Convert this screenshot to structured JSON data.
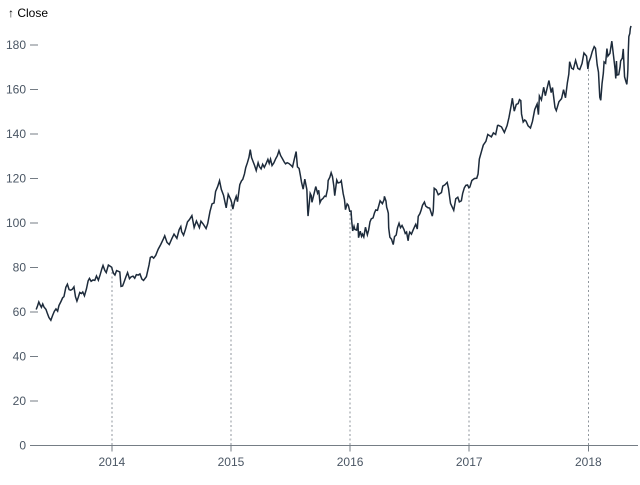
{
  "page": {
    "background": "#ffffff"
  },
  "chart_data": {
    "type": "line",
    "title": "",
    "ylabel": "↑ Close",
    "series_name": "Close",
    "legend": false,
    "grid": "dotted-vertical-rules-at-year-ticks",
    "x_ticks": [
      2014,
      2015,
      2016,
      2017,
      2018
    ],
    "x_tick_labels": [
      "2014",
      "2015",
      "2016",
      "2017",
      "2018"
    ],
    "y_ticks": [
      0,
      20,
      40,
      60,
      80,
      100,
      120,
      140,
      160,
      180
    ],
    "y_tick_labels": [
      "0",
      "20",
      "40",
      "60",
      "80",
      "100",
      "120",
      "140",
      "160",
      "180"
    ],
    "xlim": [
      2013.355,
      2018.4
    ],
    "ylim": [
      0,
      190
    ],
    "colors": {
      "line": "#1d2b3b",
      "tick_text": "#4a5664",
      "axis": "#757d85",
      "rule_dotted": "#8f969c",
      "background": "#ffffff"
    },
    "points": [
      [
        2013.365,
        61.1
      ],
      [
        2013.376,
        62.7
      ],
      [
        2013.387,
        64.5
      ],
      [
        2013.398,
        63.2
      ],
      [
        2013.409,
        62.1
      ],
      [
        2013.42,
        63.6
      ],
      [
        2013.431,
        62.2
      ],
      [
        2013.447,
        61.2
      ],
      [
        2013.458,
        59.5
      ],
      [
        2013.472,
        57.5
      ],
      [
        2013.488,
        56.3
      ],
      [
        2013.503,
        58.5
      ],
      [
        2013.517,
        60.3
      ],
      [
        2013.531,
        61.4
      ],
      [
        2013.545,
        60.4
      ],
      [
        2013.556,
        62.9
      ],
      [
        2013.572,
        64.6
      ],
      [
        2013.587,
        66.4
      ],
      [
        2013.598,
        66.9
      ],
      [
        2013.614,
        71.1
      ],
      [
        2013.627,
        72.5
      ],
      [
        2013.641,
        70.1
      ],
      [
        2013.654,
        69.8
      ],
      [
        2013.668,
        70.2
      ],
      [
        2013.682,
        71.3
      ],
      [
        2013.695,
        66.8
      ],
      [
        2013.707,
        64.9
      ],
      [
        2013.717,
        66.4
      ],
      [
        2013.731,
        68.8
      ],
      [
        2013.745,
        68.3
      ],
      [
        2013.756,
        69.0
      ],
      [
        2013.77,
        67.3
      ],
      [
        2013.787,
        70.4
      ],
      [
        2013.801,
        74.0
      ],
      [
        2013.812,
        75.1
      ],
      [
        2013.826,
        73.8
      ],
      [
        2013.842,
        74.4
      ],
      [
        2013.857,
        74.2
      ],
      [
        2013.871,
        76.2
      ],
      [
        2013.887,
        74.3
      ],
      [
        2013.901,
        76.6
      ],
      [
        2013.916,
        79.4
      ],
      [
        2013.926,
        80.9
      ],
      [
        2013.941,
        78.7
      ],
      [
        2013.953,
        77.7
      ],
      [
        2013.971,
        81.1
      ],
      [
        2013.985,
        80.6
      ],
      [
        2013.999,
        80.1
      ],
      [
        2014.004,
        79.0
      ],
      [
        2014.015,
        77.3
      ],
      [
        2014.026,
        76.6
      ],
      [
        2014.04,
        78.6
      ],
      [
        2014.055,
        78.3
      ],
      [
        2014.067,
        78.0
      ],
      [
        2014.077,
        71.5
      ],
      [
        2014.09,
        71.7
      ],
      [
        2014.101,
        73.2
      ],
      [
        2014.118,
        75.8
      ],
      [
        2014.132,
        77.7
      ],
      [
        2014.148,
        75.0
      ],
      [
        2014.162,
        75.8
      ],
      [
        2014.178,
        76.1
      ],
      [
        2014.192,
        75.2
      ],
      [
        2014.206,
        76.8
      ],
      [
        2014.222,
        76.6
      ],
      [
        2014.236,
        77.1
      ],
      [
        2014.252,
        74.8
      ],
      [
        2014.266,
        74.2
      ],
      [
        2014.29,
        75.9
      ],
      [
        2014.312,
        81.1
      ],
      [
        2014.323,
        84.5
      ],
      [
        2014.337,
        84.9
      ],
      [
        2014.351,
        84.2
      ],
      [
        2014.368,
        85.4
      ],
      [
        2014.389,
        88.2
      ],
      [
        2014.411,
        90.4
      ],
      [
        2014.433,
        92.9
      ],
      [
        2014.444,
        94.25
      ],
      [
        2014.463,
        91.3
      ],
      [
        2014.482,
        90.3
      ],
      [
        2014.503,
        92.9
      ],
      [
        2014.522,
        95.0
      ],
      [
        2014.546,
        93.1
      ],
      [
        2014.565,
        97.0
      ],
      [
        2014.579,
        98.4
      ],
      [
        2014.586,
        96.1
      ],
      [
        2014.602,
        94.5
      ],
      [
        2014.618,
        97.2
      ],
      [
        2014.635,
        100.5
      ],
      [
        2014.651,
        101.5
      ],
      [
        2014.672,
        103.3
      ],
      [
        2014.691,
        98.0
      ],
      [
        2014.71,
        100.9
      ],
      [
        2014.735,
        97.9
      ],
      [
        2014.748,
        100.8
      ],
      [
        2014.766,
        99.6
      ],
      [
        2014.791,
        97.5
      ],
      [
        2014.805,
        99.8
      ],
      [
        2014.824,
        105.2
      ],
      [
        2014.841,
        108.6
      ],
      [
        2014.858,
        109.0
      ],
      [
        2014.871,
        114.2
      ],
      [
        2014.888,
        116.3
      ],
      [
        2014.904,
        119.0
      ],
      [
        2014.919,
        115.1
      ],
      [
        2014.938,
        112.4
      ],
      [
        2014.96,
        106.8
      ],
      [
        2014.977,
        112.9
      ],
      [
        2014.999,
        110.4
      ],
      [
        2015.005,
        109.3
      ],
      [
        2015.016,
        106.25
      ],
      [
        2015.03,
        109.8
      ],
      [
        2015.044,
        112.0
      ],
      [
        2015.055,
        109.6
      ],
      [
        2015.074,
        117.2
      ],
      [
        2015.088,
        118.9
      ],
      [
        2015.099,
        119.6
      ],
      [
        2015.113,
        122.0
      ],
      [
        2015.124,
        124.9
      ],
      [
        2015.138,
        127.1
      ],
      [
        2015.151,
        129.5
      ],
      [
        2015.162,
        133.0
      ],
      [
        2015.173,
        129.4
      ],
      [
        2015.187,
        127.4
      ],
      [
        2015.198,
        125.9
      ],
      [
        2015.212,
        123.6
      ],
      [
        2015.228,
        127.1
      ],
      [
        2015.239,
        125.3
      ],
      [
        2015.253,
        124.3
      ],
      [
        2015.266,
        126.4
      ],
      [
        2015.28,
        125.0
      ],
      [
        2015.294,
        126.6
      ],
      [
        2015.31,
        128.6
      ],
      [
        2015.321,
        126.8
      ],
      [
        2015.332,
        128.7
      ],
      [
        2015.345,
        125.8
      ],
      [
        2015.36,
        127.0
      ],
      [
        2015.376,
        128.95
      ],
      [
        2015.389,
        130.2
      ],
      [
        2015.403,
        132.5
      ],
      [
        2015.417,
        130.3
      ],
      [
        2015.431,
        129.0
      ],
      [
        2015.447,
        127.4
      ],
      [
        2015.458,
        126.6
      ],
      [
        2015.472,
        127.1
      ],
      [
        2015.486,
        126.75
      ],
      [
        2015.503,
        126.0
      ],
      [
        2015.517,
        125.2
      ],
      [
        2015.531,
        128.5
      ],
      [
        2015.547,
        132.1
      ],
      [
        2015.558,
        125.2
      ],
      [
        2015.572,
        124.5
      ],
      [
        2015.583,
        121.3
      ],
      [
        2015.592,
        118.4
      ],
      [
        2015.606,
        115.2
      ],
      [
        2015.62,
        119.7
      ],
      [
        2015.637,
        115.0
      ],
      [
        2015.644,
        105.8
      ],
      [
        2015.647,
        103.1
      ],
      [
        2015.659,
        109.7
      ],
      [
        2015.665,
        113.3
      ],
      [
        2015.674,
        112.3
      ],
      [
        2015.68,
        109.3
      ],
      [
        2015.695,
        112.6
      ],
      [
        2015.712,
        116.4
      ],
      [
        2015.727,
        113.4
      ],
      [
        2015.737,
        114.7
      ],
      [
        2015.747,
        109.1
      ],
      [
        2015.758,
        110.4
      ],
      [
        2015.772,
        111.0
      ],
      [
        2015.786,
        112.1
      ],
      [
        2015.797,
        111.9
      ],
      [
        2015.811,
        115.3
      ],
      [
        2015.816,
        119.1
      ],
      [
        2015.83,
        120.6
      ],
      [
        2015.841,
        122.6
      ],
      [
        2015.852,
        120.9
      ],
      [
        2015.863,
        116.8
      ],
      [
        2015.871,
        112.3
      ],
      [
        2015.888,
        119.3
      ],
      [
        2015.899,
        118.0
      ],
      [
        2015.917,
        118.3
      ],
      [
        2015.926,
        119.0
      ],
      [
        2015.942,
        113.2
      ],
      [
        2015.953,
        110.5
      ],
      [
        2015.961,
        106.0
      ],
      [
        2015.975,
        108.6
      ],
      [
        2015.985,
        108.0
      ],
      [
        2015.997,
        105.3
      ],
      [
        2016.008,
        105.35
      ],
      [
        2016.014,
        100.7
      ],
      [
        2016.022,
        96.45
      ],
      [
        2016.033,
        98.5
      ],
      [
        2016.04,
        97.1
      ],
      [
        2016.055,
        96.8
      ],
      [
        2016.066,
        99.99
      ],
      [
        2016.071,
        93.4
      ],
      [
        2016.085,
        96.3
      ],
      [
        2016.096,
        94.0
      ],
      [
        2016.104,
        95.0
      ],
      [
        2016.115,
        93.7
      ],
      [
        2016.129,
        98.1
      ],
      [
        2016.145,
        94.7
      ],
      [
        2016.156,
        96.9
      ],
      [
        2016.167,
        100.5
      ],
      [
        2016.178,
        101.9
      ],
      [
        2016.193,
        102.3
      ],
      [
        2016.205,
        104.6
      ],
      [
        2016.216,
        105.9
      ],
      [
        2016.23,
        105.7
      ],
      [
        2016.247,
        108.99
      ],
      [
        2016.252,
        110.0
      ],
      [
        2016.271,
        108.7
      ],
      [
        2016.285,
        110.4
      ],
      [
        2016.288,
        112.0
      ],
      [
        2016.301,
        109.9
      ],
      [
        2016.307,
        107.1
      ],
      [
        2016.315,
        105.7
      ],
      [
        2016.321,
        104.35
      ],
      [
        2016.324,
        97.8
      ],
      [
        2016.334,
        93.6
      ],
      [
        2016.348,
        92.7
      ],
      [
        2016.362,
        90.3
      ],
      [
        2016.373,
        93.9
      ],
      [
        2016.387,
        94.6
      ],
      [
        2016.398,
        97.9
      ],
      [
        2016.411,
        99.9
      ],
      [
        2016.423,
        97.9
      ],
      [
        2016.436,
        98.9
      ],
      [
        2016.452,
        97.1
      ],
      [
        2016.463,
        95.3
      ],
      [
        2016.474,
        95.9
      ],
      [
        2016.487,
        92.0
      ],
      [
        2016.493,
        94.4
      ],
      [
        2016.501,
        95.9
      ],
      [
        2016.515,
        95.0
      ],
      [
        2016.528,
        96.7
      ],
      [
        2016.545,
        98.8
      ],
      [
        2016.551,
        99.4
      ],
      [
        2016.564,
        97.3
      ],
      [
        2016.572,
        103.0
      ],
      [
        2016.586,
        104.2
      ],
      [
        2016.597,
        105.9
      ],
      [
        2016.608,
        108.0
      ],
      [
        2016.624,
        109.4
      ],
      [
        2016.635,
        107.6
      ],
      [
        2016.652,
        106.9
      ],
      [
        2016.668,
        106.7
      ],
      [
        2016.69,
        103.1
      ],
      [
        2016.698,
        105.4
      ],
      [
        2016.703,
        111.8
      ],
      [
        2016.706,
        115.6
      ],
      [
        2016.723,
        114.9
      ],
      [
        2016.74,
        112.7
      ],
      [
        2016.767,
        113.7
      ],
      [
        2016.778,
        116.6
      ],
      [
        2016.795,
        117.1
      ],
      [
        2016.815,
        118.25
      ],
      [
        2016.826,
        115.6
      ],
      [
        2016.837,
        111.1
      ],
      [
        2016.843,
        108.8
      ],
      [
        2016.87,
        105.7
      ],
      [
        2016.887,
        110.9
      ],
      [
        2016.904,
        111.6
      ],
      [
        2016.917,
        109.5
      ],
      [
        2016.934,
        110.0
      ],
      [
        2016.945,
        113.3
      ],
      [
        2016.959,
        115.8
      ],
      [
        2016.972,
        116.95
      ],
      [
        2016.986,
        117.1
      ],
      [
        2016.997,
        115.8
      ],
      [
        2017.005,
        116.15
      ],
      [
        2017.022,
        119.1
      ],
      [
        2017.044,
        120.0
      ],
      [
        2017.063,
        120.1
      ],
      [
        2017.074,
        121.95
      ],
      [
        2017.085,
        128.75
      ],
      [
        2017.104,
        132.4
      ],
      [
        2017.118,
        135.0
      ],
      [
        2017.14,
        136.7
      ],
      [
        2017.156,
        139.8
      ],
      [
        2017.186,
        138.7
      ],
      [
        2017.203,
        140.5
      ],
      [
        2017.222,
        139.8
      ],
      [
        2017.238,
        143.8
      ],
      [
        2017.245,
        143.9
      ],
      [
        2017.271,
        143.2
      ],
      [
        2017.295,
        140.7
      ],
      [
        2017.318,
        143.8
      ],
      [
        2017.334,
        147.5
      ],
      [
        2017.353,
        153.0
      ],
      [
        2017.362,
        156.1
      ],
      [
        2017.378,
        150.25
      ],
      [
        2017.395,
        153.3
      ],
      [
        2017.411,
        153.7
      ],
      [
        2017.422,
        155.45
      ],
      [
        2017.433,
        155.0
      ],
      [
        2017.439,
        149.0
      ],
      [
        2017.453,
        145.4
      ],
      [
        2017.466,
        146.3
      ],
      [
        2017.477,
        145.8
      ],
      [
        2017.494,
        143.7
      ],
      [
        2017.514,
        142.7
      ],
      [
        2017.531,
        145.7
      ],
      [
        2017.55,
        151.0
      ],
      [
        2017.57,
        153.5
      ],
      [
        2017.581,
        148.7
      ],
      [
        2017.589,
        157.1
      ],
      [
        2017.606,
        155.3
      ],
      [
        2017.625,
        161.0
      ],
      [
        2017.639,
        157.2
      ],
      [
        2017.669,
        164.05
      ],
      [
        2017.688,
        158.6
      ],
      [
        2017.699,
        160.9
      ],
      [
        2017.72,
        151.9
      ],
      [
        2017.731,
        150.55
      ],
      [
        2017.753,
        154.5
      ],
      [
        2017.775,
        155.9
      ],
      [
        2017.792,
        159.9
      ],
      [
        2017.808,
        156.25
      ],
      [
        2017.824,
        163.05
      ],
      [
        2017.836,
        166.9
      ],
      [
        2017.843,
        172.5
      ],
      [
        2017.859,
        169.6
      ],
      [
        2017.874,
        169.1
      ],
      [
        2017.893,
        173.1
      ],
      [
        2017.912,
        169.5
      ],
      [
        2017.928,
        169.0
      ],
      [
        2017.947,
        171.7
      ],
      [
        2017.963,
        176.4
      ],
      [
        2017.985,
        175.0
      ],
      [
        2017.996,
        169.23
      ],
      [
        2018.004,
        172.26
      ],
      [
        2018.019,
        174.35
      ],
      [
        2018.033,
        177.1
      ],
      [
        2018.049,
        179.26
      ],
      [
        2018.06,
        178.5
      ],
      [
        2018.074,
        171.1
      ],
      [
        2018.085,
        167.8
      ],
      [
        2018.096,
        156.5
      ],
      [
        2018.104,
        155.15
      ],
      [
        2018.115,
        162.7
      ],
      [
        2018.126,
        167.4
      ],
      [
        2018.132,
        172.4
      ],
      [
        2018.145,
        171.8
      ],
      [
        2018.156,
        178.4
      ],
      [
        2018.164,
        175.0
      ],
      [
        2018.181,
        176.2
      ],
      [
        2018.192,
        179.98
      ],
      [
        2018.197,
        181.72
      ],
      [
        2018.211,
        175.3
      ],
      [
        2018.225,
        168.8
      ],
      [
        2018.23,
        164.94
      ],
      [
        2018.236,
        172.77
      ],
      [
        2018.241,
        166.5
      ],
      [
        2018.255,
        166.7
      ],
      [
        2018.266,
        170.05
      ],
      [
        2018.271,
        172.8
      ],
      [
        2018.285,
        174.1
      ],
      [
        2018.293,
        178.24
      ],
      [
        2018.304,
        165.7
      ],
      [
        2018.315,
        163.65
      ],
      [
        2018.323,
        162.32
      ],
      [
        2018.329,
        166.1
      ],
      [
        2018.332,
        169.1
      ],
      [
        2018.335,
        176.57
      ],
      [
        2018.34,
        183.83
      ],
      [
        2018.348,
        185.16
      ],
      [
        2018.352,
        187.36
      ],
      [
        2018.358,
        188.59
      ]
    ]
  }
}
